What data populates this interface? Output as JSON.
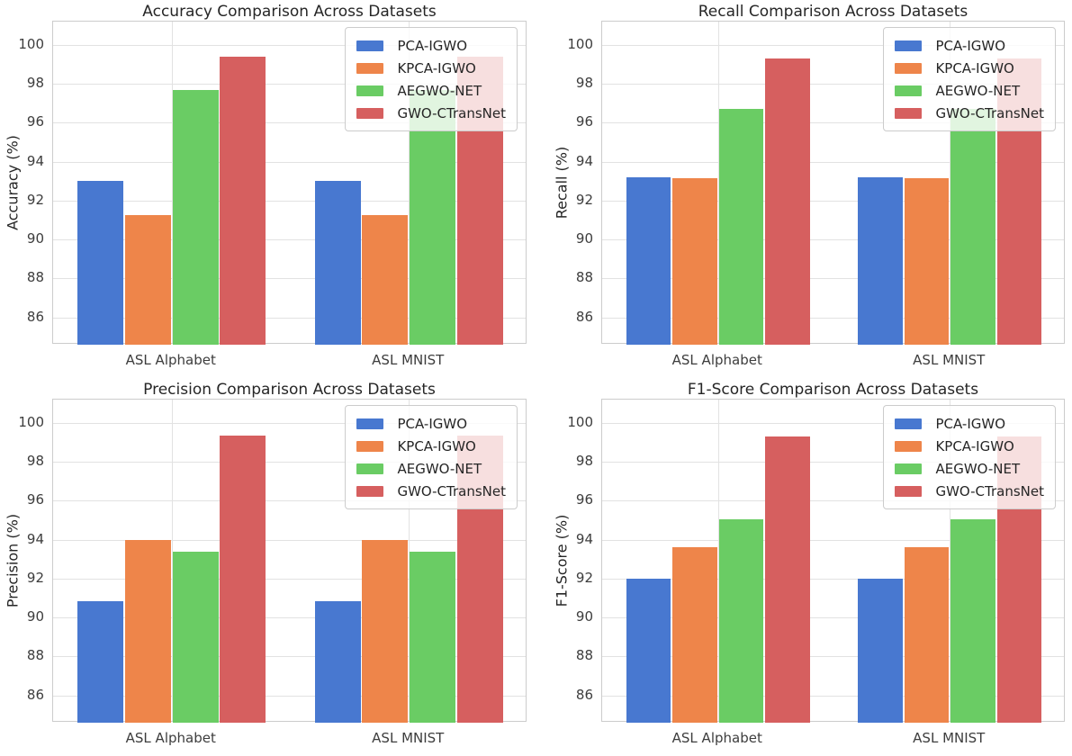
{
  "figure": {
    "background": "#ffffff"
  },
  "palette": {
    "series_blue": "#4878D0",
    "series_orange": "#EE854A",
    "series_green": "#6ACC64",
    "series_red": "#D65F5F",
    "grid": "#e2e2e2",
    "axes_border": "#cccccc",
    "title_text": "#262626",
    "tick_text": "#3d3d3d"
  },
  "chart_data": [
    {
      "type": "bar",
      "title": "Accuracy Comparison Across Datasets",
      "xlabel": "",
      "ylabel": "Accuracy (%)",
      "categories": [
        "ASL Alphabet",
        "ASL MNIST"
      ],
      "series": [
        {
          "name": "PCA-IGWO",
          "color": "#4878D0",
          "values": [
            93.0,
            93.0
          ]
        },
        {
          "name": "KPCA-IGWO",
          "color": "#EE854A",
          "values": [
            91.25,
            91.25
          ]
        },
        {
          "name": "AEGWO-NET",
          "color": "#6ACC64",
          "values": [
            97.7,
            97.7
          ]
        },
        {
          "name": "GWO-CTransNet",
          "color": "#D65F5F",
          "values": [
            99.4,
            99.4
          ]
        }
      ],
      "ylim": [
        84.6,
        101.2
      ],
      "yticks": [
        86,
        88,
        90,
        92,
        94,
        96,
        98,
        100
      ],
      "grid": true,
      "legend_position": "upper right"
    },
    {
      "type": "bar",
      "title": "Recall Comparison Across Datasets",
      "xlabel": "",
      "ylabel": "Recall (%)",
      "categories": [
        "ASL Alphabet",
        "ASL MNIST"
      ],
      "series": [
        {
          "name": "PCA-IGWO",
          "color": "#4878D0",
          "values": [
            93.2,
            93.2
          ]
        },
        {
          "name": "KPCA-IGWO",
          "color": "#EE854A",
          "values": [
            93.15,
            93.15
          ]
        },
        {
          "name": "AEGWO-NET",
          "color": "#6ACC64",
          "values": [
            96.7,
            96.7
          ]
        },
        {
          "name": "GWO-CTransNet",
          "color": "#D65F5F",
          "values": [
            99.3,
            99.3
          ]
        }
      ],
      "ylim": [
        84.6,
        101.2
      ],
      "yticks": [
        86,
        88,
        90,
        92,
        94,
        96,
        98,
        100
      ],
      "grid": true,
      "legend_position": "upper right"
    },
    {
      "type": "bar",
      "title": "Precision Comparison Across Datasets",
      "xlabel": "",
      "ylabel": "Precision (%)",
      "categories": [
        "ASL Alphabet",
        "ASL MNIST"
      ],
      "series": [
        {
          "name": "PCA-IGWO",
          "color": "#4878D0",
          "values": [
            90.85,
            90.85
          ]
        },
        {
          "name": "KPCA-IGWO",
          "color": "#EE854A",
          "values": [
            94.0,
            94.0
          ]
        },
        {
          "name": "AEGWO-NET",
          "color": "#6ACC64",
          "values": [
            93.4,
            93.4
          ]
        },
        {
          "name": "GWO-CTransNet",
          "color": "#D65F5F",
          "values": [
            99.35,
            99.35
          ]
        }
      ],
      "ylim": [
        84.6,
        101.2
      ],
      "yticks": [
        86,
        88,
        90,
        92,
        94,
        96,
        98,
        100
      ],
      "grid": true,
      "legend_position": "upper right"
    },
    {
      "type": "bar",
      "title": "F1-Score Comparison Across Datasets",
      "xlabel": "",
      "ylabel": "F1-Score (%)",
      "categories": [
        "ASL Alphabet",
        "ASL MNIST"
      ],
      "series": [
        {
          "name": "PCA-IGWO",
          "color": "#4878D0",
          "values": [
            92.0,
            92.0
          ]
        },
        {
          "name": "KPCA-IGWO",
          "color": "#EE854A",
          "values": [
            93.6,
            93.6
          ]
        },
        {
          "name": "AEGWO-NET",
          "color": "#6ACC64",
          "values": [
            95.05,
            95.05
          ]
        },
        {
          "name": "GWO-CTransNet",
          "color": "#D65F5F",
          "values": [
            99.3,
            99.3
          ]
        }
      ],
      "ylim": [
        84.6,
        101.2
      ],
      "yticks": [
        86,
        88,
        90,
        92,
        94,
        96,
        98,
        100
      ],
      "grid": true,
      "legend_position": "upper right"
    }
  ]
}
